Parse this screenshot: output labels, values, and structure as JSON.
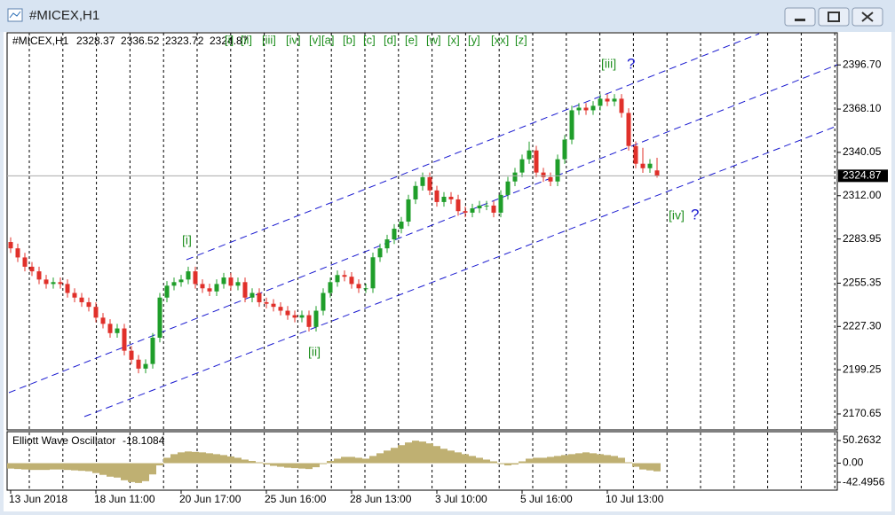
{
  "window": {
    "title": "#MICEX,H1"
  },
  "toolbar": [
    "[i]",
    "[ii]",
    "[iii]",
    "[iv]",
    "[v]",
    "[a]",
    "[b]",
    "[c]",
    "[d]",
    "[e]",
    "[w]",
    "[x]",
    "[y]",
    "[xx]",
    "[z]"
  ],
  "chart_data": {
    "type": "candlestick",
    "title": "#MICEX,H1",
    "categories": [
      "13 Jun 2018",
      null,
      null,
      null,
      null,
      null,
      null,
      null,
      null,
      null,
      null,
      null,
      "18 Jun 11:00",
      null,
      null,
      null,
      null,
      null,
      null,
      null,
      null,
      null,
      null,
      null,
      "20 Jun 17:00",
      null,
      null,
      null,
      null,
      null,
      null,
      null,
      null,
      null,
      null,
      null,
      "25 Jun 16:00",
      null,
      null,
      null,
      null,
      null,
      null,
      null,
      null,
      null,
      null,
      null,
      "28 Jun 13:00",
      null,
      null,
      null,
      null,
      null,
      null,
      null,
      null,
      null,
      null,
      null,
      "3 Jul 10:00",
      null,
      null,
      null,
      null,
      null,
      null,
      null,
      null,
      null,
      null,
      null,
      "5 Jul 16:00",
      null,
      null,
      null,
      null,
      null,
      null,
      null,
      null,
      null,
      null,
      null,
      "10 Jul 13:00",
      null,
      null,
      null,
      null,
      null,
      null,
      null
    ],
    "open": [
      2282,
      2277.9,
      2272,
      2266,
      2263,
      2257.7,
      2254.8,
      2256,
      2254.8,
      2249,
      2246,
      2243,
      2240,
      2233,
      2229,
      2223,
      2226,
      2211.6,
      2205.8,
      2200,
      2203,
      2220,
      2246,
      2253.7,
      2256,
      2257.7,
      2263,
      2254.8,
      2252,
      2250,
      2254.8,
      2259,
      2253.7,
      2256,
      2246,
      2249,
      2243,
      2242,
      2240,
      2237.5,
      2234.6,
      2233,
      2234.6,
      2227,
      2237.5,
      2249,
      2256,
      2260.6,
      2259.5,
      2254.8,
      2252,
      2252,
      2272.1,
      2277.9,
      2283.7,
      2290.6,
      2295.2,
      2309.6,
      2318.3,
      2324,
      2315.4,
      2307.9,
      2311.3,
      2309.6,
      2302,
      2301,
      2303.8,
      2305.6,
      2305.6,
      2301,
      2312.5,
      2321.2,
      2327,
      2335.6,
      2341.3,
      2327,
      2324,
      2321.2,
      2335.6,
      2348.3,
      2367.3,
      2369,
      2367.3,
      2370.2,
      2374.8,
      2373,
      2374.8,
      2365.6,
      2344.2,
      2332.7,
      2329.8,
      2328.37
    ],
    "high": [
      2285,
      2280.9,
      2275,
      2269,
      2266,
      2260.7,
      2259,
      2259,
      2257.8,
      2252,
      2249,
      2246,
      2243,
      2236,
      2232,
      2229,
      2229,
      2214.6,
      2208.8,
      2206,
      2223,
      2249,
      2256.7,
      2259,
      2260.7,
      2266,
      2266,
      2257.8,
      2255,
      2257.8,
      2262,
      2262,
      2259,
      2259,
      2252,
      2252,
      2246,
      2245,
      2243,
      2240.5,
      2237.6,
      2237.6,
      2237.6,
      2240.5,
      2252,
      2259,
      2263.6,
      2263.6,
      2262.5,
      2257.8,
      2255,
      2275.1,
      2280.9,
      2286.7,
      2293.6,
      2298.2,
      2312.6,
      2321.3,
      2327,
      2327,
      2318.4,
      2314.3,
      2314.3,
      2312.6,
      2305,
      2306.8,
      2308.6,
      2308.6,
      2308.6,
      2315.5,
      2324.2,
      2330,
      2338.6,
      2347,
      2344.3,
      2330,
      2327,
      2338.6,
      2351.3,
      2370.3,
      2372,
      2372,
      2373.2,
      2377.8,
      2377.8,
      2377.8,
      2377.8,
      2368.6,
      2347.2,
      2343,
      2335.7,
      2336.52
    ],
    "low": [
      2274.9,
      2269,
      2263,
      2260,
      2254.7,
      2251.8,
      2251.8,
      2251.8,
      2246,
      2243,
      2240,
      2237,
      2230,
      2226,
      2220,
      2220,
      2208.6,
      2202.8,
      2197,
      2197,
      2200,
      2217,
      2243,
      2250.7,
      2253,
      2254.7,
      2251.8,
      2249,
      2247,
      2247,
      2251.8,
      2250.7,
      2250.7,
      2243,
      2243,
      2240,
      2239,
      2237,
      2234.5,
      2231.6,
      2230,
      2230,
      2224,
      2224,
      2234.5,
      2246,
      2253,
      2256.5,
      2251.8,
      2249,
      2249,
      2249,
      2269.1,
      2274.9,
      2280.7,
      2287.6,
      2292.2,
      2306.6,
      2315.3,
      2312.4,
      2304.9,
      2304.9,
      2306.6,
      2299,
      2298,
      2298,
      2300.8,
      2302.6,
      2298,
      2298,
      2309.5,
      2318.2,
      2324,
      2332.6,
      2324,
      2321,
      2318.2,
      2318.2,
      2332.6,
      2345.3,
      2364.3,
      2364.3,
      2364.3,
      2367.2,
      2370,
      2370,
      2362.6,
      2341.2,
      2329.7,
      2326.8,
      2326.8,
      2323.72
    ],
    "close": [
      2277.9,
      2272,
      2266,
      2263,
      2257.7,
      2254.8,
      2256,
      2254.8,
      2249,
      2246,
      2243,
      2240,
      2233,
      2229,
      2223,
      2226,
      2211.6,
      2205.8,
      2200,
      2203,
      2220,
      2246,
      2253.7,
      2256,
      2257.7,
      2263,
      2254.8,
      2252,
      2250,
      2254.8,
      2259,
      2253.7,
      2256,
      2246,
      2249,
      2243,
      2242,
      2240,
      2237.5,
      2234.6,
      2233,
      2234.6,
      2227,
      2237.5,
      2249,
      2256,
      2260.6,
      2259.5,
      2254.8,
      2252,
      2252,
      2272.1,
      2277.9,
      2283.7,
      2290.6,
      2295.2,
      2309.6,
      2318.3,
      2324,
      2315.4,
      2307.9,
      2311.3,
      2309.6,
      2302,
      2301,
      2303.8,
      2305.6,
      2305.6,
      2301,
      2312.5,
      2321.2,
      2327,
      2335.6,
      2341.3,
      2327,
      2324,
      2321.2,
      2335.6,
      2348.3,
      2367.3,
      2369,
      2367.3,
      2370.2,
      2374.8,
      2373,
      2374.8,
      2365.6,
      2344.2,
      2332.7,
      2329.8,
      2332.7,
      2324.87
    ],
    "up_color": "#1f9e2a",
    "down_color": "#e0302a",
    "ylim": [
      2160.3,
      2417.5
    ],
    "yticks": [
      {
        "value": 2396.7,
        "label": "2396.70"
      },
      {
        "value": 2368.1,
        "label": "2368.10"
      },
      2340.05,
      {
        "value": 2312,
        "label": "2312.00"
      },
      2283.95,
      2255.35,
      {
        "value": 2227.3,
        "label": "2227.30"
      },
      2199.25,
      2170.65
    ],
    "annotations": [
      "[i]",
      "[ii]",
      "[iii]",
      "?",
      "[iv]",
      "?"
    ],
    "oscillator": {
      "name": "Elliott Wave Oscillator",
      "color": "#bfb072",
      "values": [
        -12,
        -13,
        -14,
        -15,
        -15,
        -15,
        -14,
        -14,
        -15,
        -16,
        -17,
        -18,
        -22,
        -26,
        -30,
        -32,
        -38,
        -42,
        -44,
        -40,
        -25,
        -5,
        12,
        20,
        24,
        26,
        25,
        24,
        22,
        20,
        18,
        15,
        12,
        8,
        5,
        2,
        -3,
        -6,
        -8,
        -10,
        -11,
        -12,
        -13,
        -9,
        -2,
        5,
        10,
        14,
        14,
        12,
        10,
        16,
        22,
        28,
        34,
        40,
        46,
        50,
        48,
        44,
        38,
        32,
        28,
        24,
        20,
        16,
        12,
        8,
        4,
        -2,
        -5,
        -3,
        4,
        10,
        12,
        12,
        14,
        16,
        18,
        20,
        22,
        24,
        22,
        20,
        18,
        16,
        12,
        2,
        -8,
        -14,
        -16,
        -18.1084
      ],
      "ylim": [
        -60,
        68
      ],
      "yticks": [
        50.2632,
        {
          "value": 0,
          "label": "0.00"
        },
        -42.4956
      ]
    }
  }
}
